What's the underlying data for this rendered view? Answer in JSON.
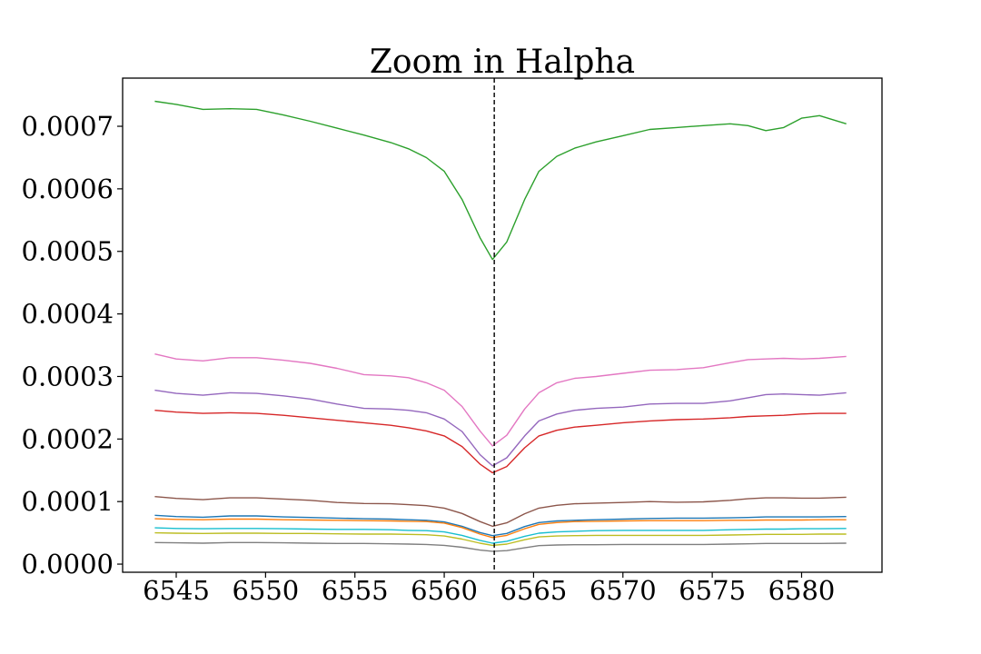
{
  "chart_data": {
    "type": "line",
    "title": "Zoom in Halpha",
    "xlabel": "",
    "ylabel": "",
    "xlim": [
      6542.0,
      6584.5
    ],
    "ylim": [
      -1.3e-05,
      0.000777
    ],
    "x_ticks": [
      6545,
      6550,
      6555,
      6560,
      6565,
      6570,
      6575,
      6580
    ],
    "x_tick_labels": [
      "6545",
      "6550",
      "6555",
      "6560",
      "6565",
      "6570",
      "6575",
      "6580"
    ],
    "y_ticks": [
      0.0,
      0.0001,
      0.0002,
      0.0003,
      0.0004,
      0.0005,
      0.0006,
      0.0007
    ],
    "y_tick_labels": [
      "0.0000",
      "0.0001",
      "0.0002",
      "0.0003",
      "0.0004",
      "0.0005",
      "0.0006",
      "0.0007"
    ],
    "grid": false,
    "reference_line": {
      "x": 6562.8,
      "style": "dashed",
      "color": "#000000"
    },
    "x": [
      6543.8,
      6545,
      6546.5,
      6548,
      6549.5,
      6551,
      6552.5,
      6554,
      6555.5,
      6557,
      6558,
      6559,
      6560,
      6561,
      6562,
      6562.7,
      6563.5,
      6564.5,
      6565.3,
      6566.3,
      6567.3,
      6568.5,
      6570,
      6571.5,
      6573,
      6574.5,
      6576,
      6577,
      6578,
      6579,
      6580,
      6581,
      6582.5
    ],
    "series": [
      {
        "color": "#2ca02c",
        "values": [
          0.00074,
          0.000735,
          0.000727,
          0.000728,
          0.000727,
          0.000718,
          0.000708,
          0.000697,
          0.000686,
          0.000674,
          0.000664,
          0.00065,
          0.000628,
          0.000583,
          0.000522,
          0.000487,
          0.000515,
          0.000583,
          0.000628,
          0.000652,
          0.000665,
          0.000675,
          0.000685,
          0.000695,
          0.000698,
          0.000701,
          0.000704,
          0.000701,
          0.000693,
          0.000698,
          0.000713,
          0.000717,
          0.000704
        ]
      },
      {
        "color": "#e377c2",
        "values": [
          0.000336,
          0.000328,
          0.000325,
          0.00033,
          0.00033,
          0.000326,
          0.000321,
          0.000313,
          0.000303,
          0.000301,
          0.000298,
          0.00029,
          0.000278,
          0.000252,
          0.000213,
          0.000189,
          0.000206,
          0.000248,
          0.000274,
          0.00029,
          0.000297,
          0.0003,
          0.000305,
          0.00031,
          0.000311,
          0.000314,
          0.000322,
          0.000327,
          0.000328,
          0.000329,
          0.000328,
          0.000329,
          0.000332
        ]
      },
      {
        "color": "#9467bd",
        "values": [
          0.000278,
          0.000273,
          0.00027,
          0.000274,
          0.000273,
          0.000269,
          0.000264,
          0.000256,
          0.000249,
          0.000248,
          0.000246,
          0.000242,
          0.000232,
          0.000212,
          0.000175,
          0.000157,
          0.00017,
          0.000205,
          0.000229,
          0.00024,
          0.000246,
          0.000249,
          0.000251,
          0.000256,
          0.000257,
          0.000257,
          0.000261,
          0.000266,
          0.000271,
          0.000272,
          0.000271,
          0.00027,
          0.000274
        ]
      },
      {
        "color": "#d62728",
        "values": [
          0.000246,
          0.000243,
          0.000241,
          0.000242,
          0.000241,
          0.000238,
          0.000234,
          0.00023,
          0.000226,
          0.000222,
          0.000218,
          0.000213,
          0.000205,
          0.000188,
          0.00016,
          0.000146,
          0.000156,
          0.000186,
          0.000205,
          0.000214,
          0.000219,
          0.000222,
          0.000226,
          0.000229,
          0.000231,
          0.000232,
          0.000234,
          0.000236,
          0.000237,
          0.000238,
          0.00024,
          0.000241,
          0.000241
        ]
      },
      {
        "color": "#8c564b",
        "values": [
          0.000108,
          0.000105,
          0.000103,
          0.000106,
          0.000106,
          0.000104,
          0.000102,
          9.85e-05,
          9.7e-05,
          9.65e-05,
          9.5e-05,
          9.35e-05,
          8.95e-05,
          8.1e-05,
          6.8e-05,
          6.05e-05,
          6.6e-05,
          8.05e-05,
          8.95e-05,
          9.4e-05,
          9.65e-05,
          9.75e-05,
          9.85e-05,
          0.0001,
          9.9e-05,
          9.95e-05,
          0.000102,
          0.0001045,
          0.000106,
          0.000106,
          0.0001055,
          0.0001055,
          0.000107
        ]
      },
      {
        "color": "#1f77b4",
        "values": [
          7.8e-05,
          7.6e-05,
          7.5e-05,
          7.7e-05,
          7.7e-05,
          7.55e-05,
          7.45e-05,
          7.35e-05,
          7.25e-05,
          7.2e-05,
          7.1e-05,
          7e-05,
          6.75e-05,
          6.05e-05,
          5.05e-05,
          4.55e-05,
          4.9e-05,
          6e-05,
          6.65e-05,
          6.9e-05,
          7e-05,
          7.1e-05,
          7.2e-05,
          7.3e-05,
          7.35e-05,
          7.35e-05,
          7.4e-05,
          7.45e-05,
          7.55e-05,
          7.55e-05,
          7.55e-05,
          7.55e-05,
          7.6e-05
        ]
      },
      {
        "color": "#ff7f0e",
        "values": [
          7.25e-05,
          7.15e-05,
          7.1e-05,
          7.2e-05,
          7.2e-05,
          7.1e-05,
          7.05e-05,
          7e-05,
          6.95e-05,
          6.9e-05,
          6.85e-05,
          6.8e-05,
          6.55e-05,
          5.85e-05,
          4.8e-05,
          4.25e-05,
          4.6e-05,
          5.65e-05,
          6.35e-05,
          6.65e-05,
          6.8e-05,
          6.85e-05,
          6.9e-05,
          6.95e-05,
          6.95e-05,
          6.95e-05,
          7e-05,
          7e-05,
          7.05e-05,
          7.05e-05,
          7.05e-05,
          7.1e-05,
          7.1e-05
        ]
      },
      {
        "color": "#17becf",
        "values": [
          5.8e-05,
          5.7e-05,
          5.65e-05,
          5.7e-05,
          5.7e-05,
          5.65e-05,
          5.6e-05,
          5.55e-05,
          5.55e-05,
          5.5e-05,
          5.4e-05,
          5.35e-05,
          5.15e-05,
          4.6e-05,
          3.8e-05,
          3.35e-05,
          3.65e-05,
          4.45e-05,
          4.95e-05,
          5.15e-05,
          5.25e-05,
          5.35e-05,
          5.4e-05,
          5.4e-05,
          5.4e-05,
          5.4e-05,
          5.5e-05,
          5.55e-05,
          5.6e-05,
          5.6e-05,
          5.65e-05,
          5.65e-05,
          5.7e-05
        ]
      },
      {
        "color": "#bcbd22",
        "values": [
          5e-05,
          4.95e-05,
          4.9e-05,
          4.95e-05,
          4.95e-05,
          4.9e-05,
          4.9e-05,
          4.85e-05,
          4.8e-05,
          4.8e-05,
          4.75e-05,
          4.7e-05,
          4.5e-05,
          4e-05,
          3.35e-05,
          3e-05,
          3.2e-05,
          3.9e-05,
          4.35e-05,
          4.5e-05,
          4.55e-05,
          4.6e-05,
          4.6e-05,
          4.6e-05,
          4.6e-05,
          4.6e-05,
          4.65e-05,
          4.7e-05,
          4.75e-05,
          4.75e-05,
          4.75e-05,
          4.8e-05,
          4.8e-05
        ]
      },
      {
        "color": "#7f7f7f",
        "values": [
          3.45e-05,
          3.4e-05,
          3.35e-05,
          3.45e-05,
          3.45e-05,
          3.4e-05,
          3.35e-05,
          3.3e-05,
          3.3e-05,
          3.25e-05,
          3.2e-05,
          3.15e-05,
          3e-05,
          2.7e-05,
          2.25e-05,
          2.05e-05,
          2.15e-05,
          2.6e-05,
          2.95e-05,
          3.05e-05,
          3.1e-05,
          3.1e-05,
          3.15e-05,
          3.15e-05,
          3.15e-05,
          3.15e-05,
          3.2e-05,
          3.25e-05,
          3.3e-05,
          3.3e-05,
          3.3e-05,
          3.3e-05,
          3.35e-05
        ]
      }
    ]
  }
}
